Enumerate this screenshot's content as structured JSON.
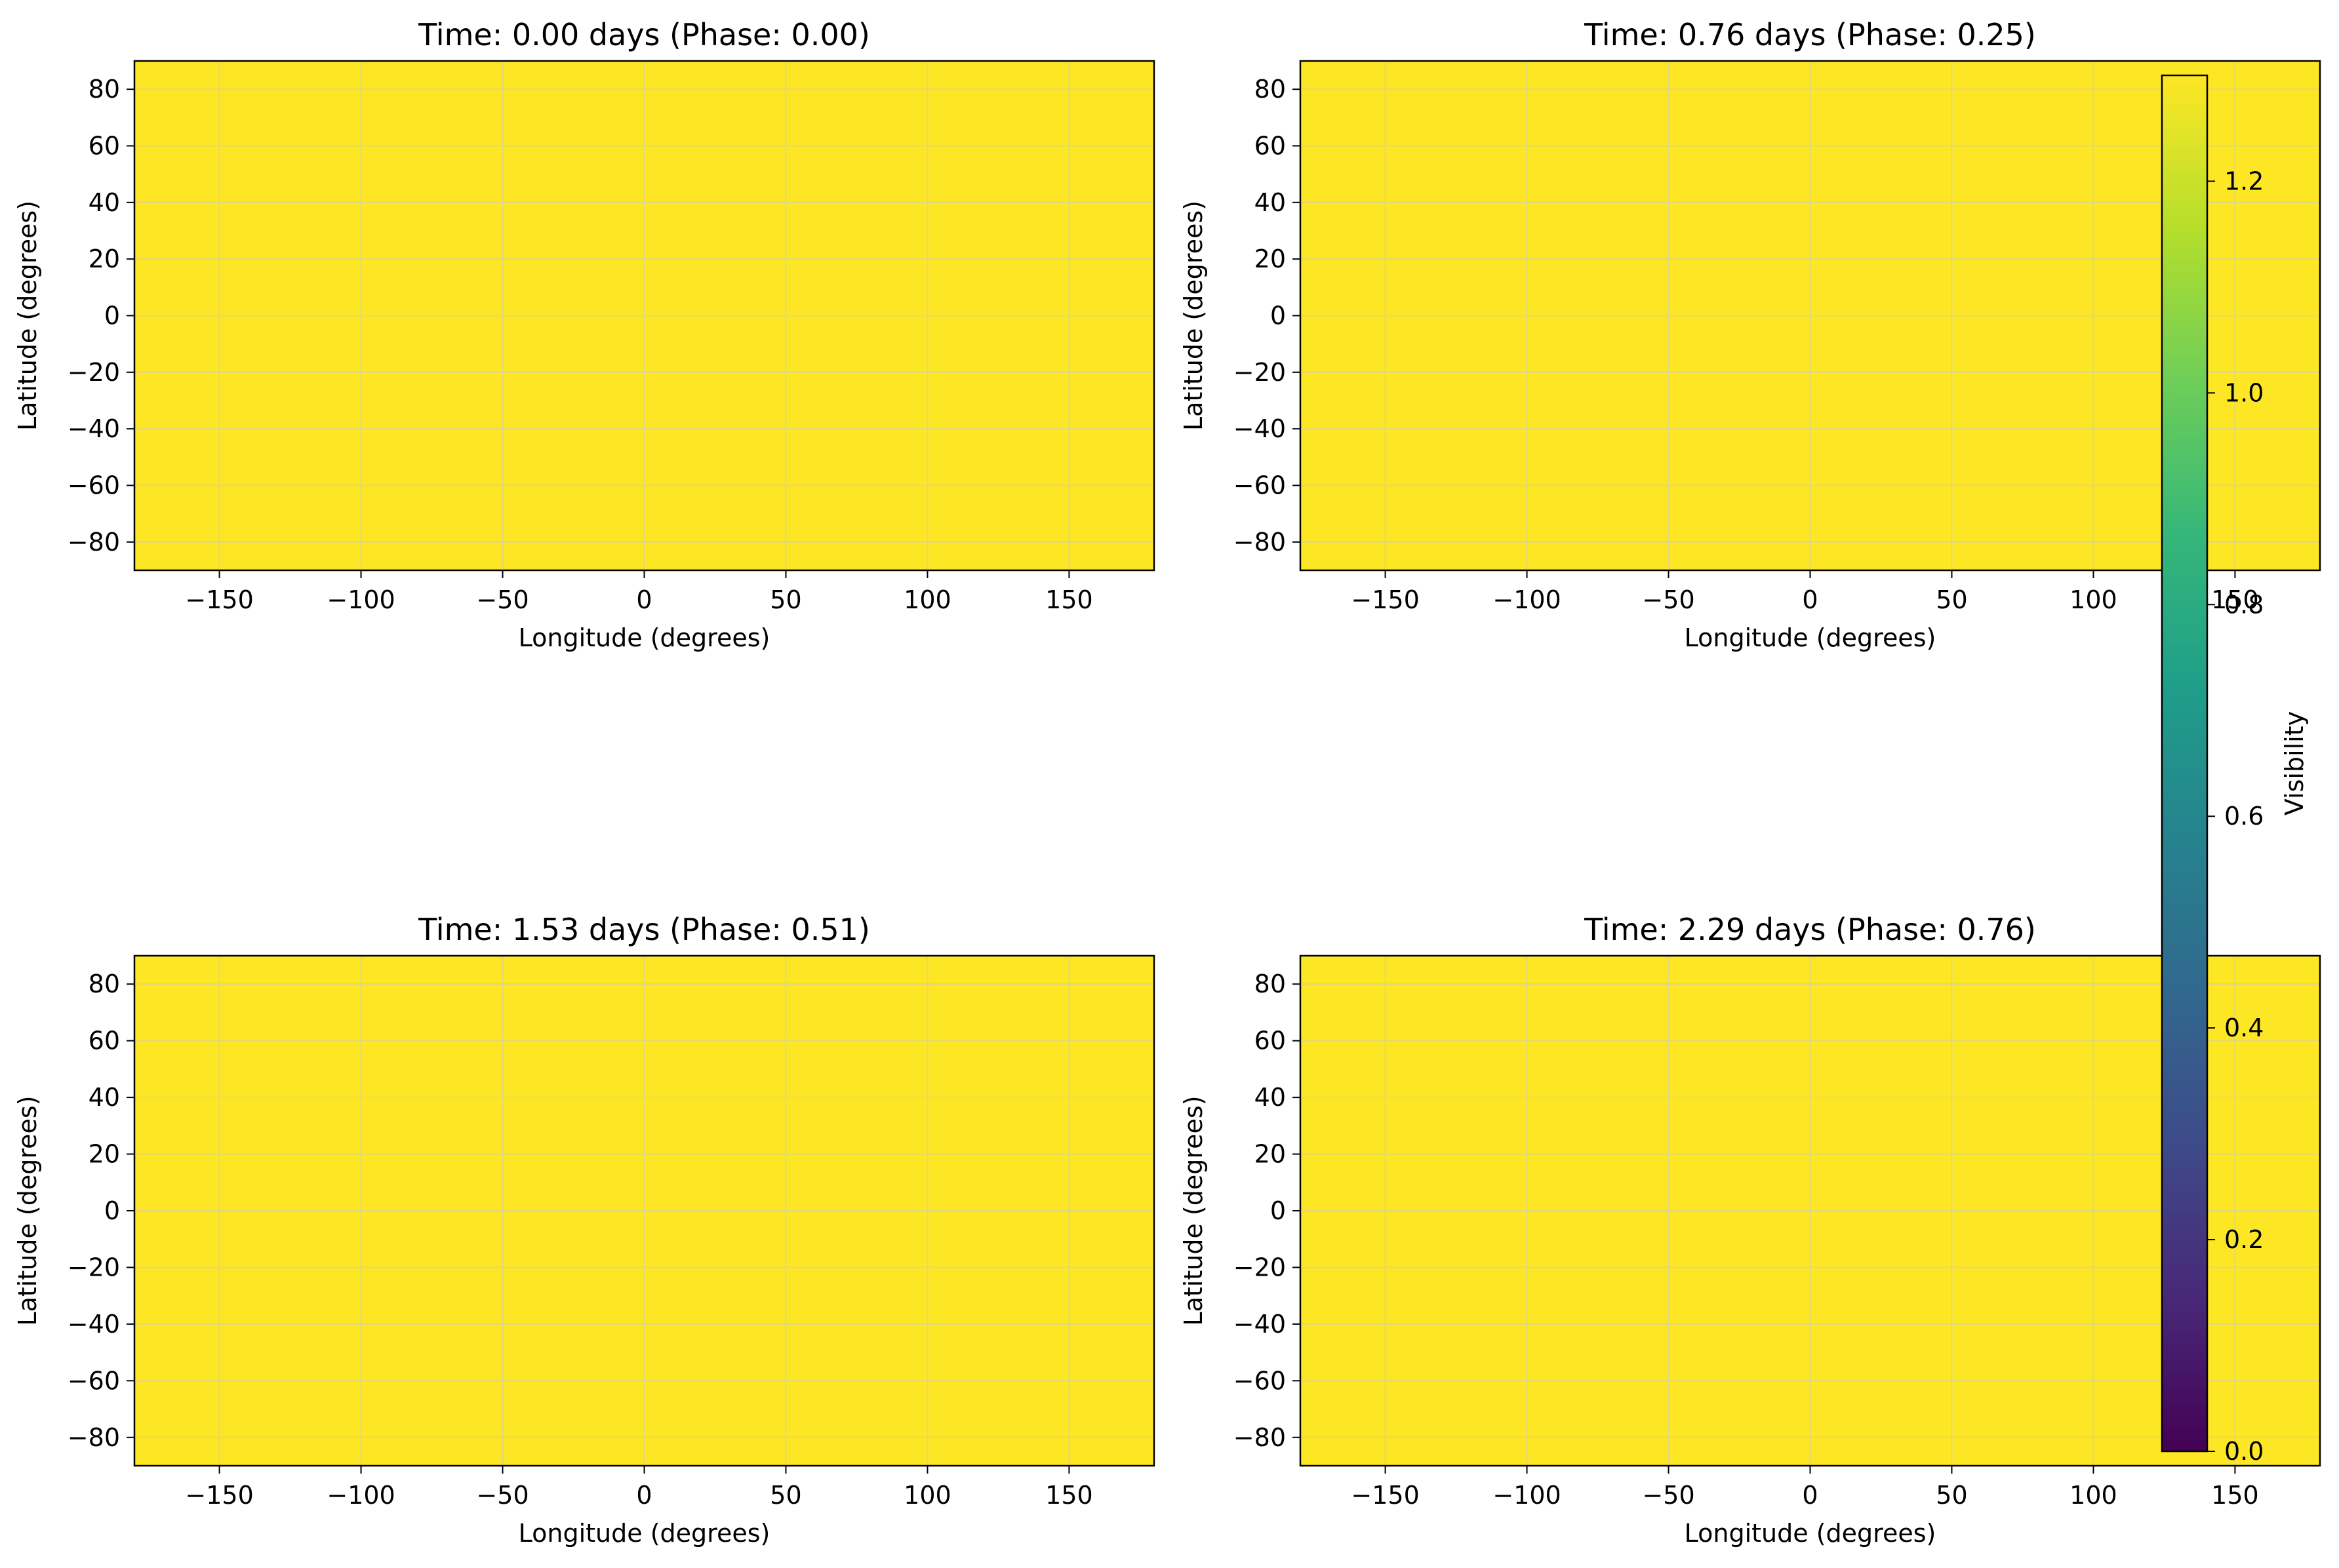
{
  "chart_data": [
    {
      "type": "heatmap",
      "title": "Time: 0.00 days (Phase: 0.00)",
      "xlabel": "Longitude (degrees)",
      "ylabel": "Latitude (degrees)",
      "xlim": [
        -180,
        180
      ],
      "ylim": [
        -90,
        90
      ],
      "xticks": [
        -150,
        -100,
        -50,
        0,
        50,
        100,
        150
      ],
      "yticks": [
        -80,
        -60,
        -40,
        -20,
        0,
        20,
        40,
        60,
        80
      ],
      "grid": true,
      "values": "uniform",
      "uniform_value": 1.3
    },
    {
      "type": "heatmap",
      "title": "Time: 0.76 days (Phase: 0.25)",
      "xlabel": "Longitude (degrees)",
      "ylabel": "Latitude (degrees)",
      "xlim": [
        -180,
        180
      ],
      "ylim": [
        -90,
        90
      ],
      "xticks": [
        -150,
        -100,
        -50,
        0,
        50,
        100,
        150
      ],
      "yticks": [
        -80,
        -60,
        -40,
        -20,
        0,
        20,
        40,
        60,
        80
      ],
      "grid": true,
      "values": "uniform",
      "uniform_value": 1.3
    },
    {
      "type": "heatmap",
      "title": "Time: 1.53 days (Phase: 0.51)",
      "xlabel": "Longitude (degrees)",
      "ylabel": "Latitude (degrees)",
      "xlim": [
        -180,
        180
      ],
      "ylim": [
        -90,
        90
      ],
      "xticks": [
        -150,
        -100,
        -50,
        0,
        50,
        100,
        150
      ],
      "yticks": [
        -80,
        -60,
        -40,
        -20,
        0,
        20,
        40,
        60,
        80
      ],
      "grid": true,
      "values": "uniform",
      "uniform_value": 1.3
    },
    {
      "type": "heatmap",
      "title": "Time: 2.29 days (Phase: 0.76)",
      "xlabel": "Longitude (degrees)",
      "ylabel": "Latitude (degrees)",
      "xlim": [
        -180,
        180
      ],
      "ylim": [
        -90,
        90
      ],
      "xticks": [
        -150,
        -100,
        -50,
        0,
        50,
        100,
        150
      ],
      "yticks": [
        -80,
        -60,
        -40,
        -20,
        0,
        20,
        40,
        60,
        80
      ],
      "grid": true,
      "values": "uniform",
      "uniform_value": 1.3
    }
  ],
  "colorbar": {
    "label": "Visibility",
    "colormap": "viridis",
    "range": [
      0.0,
      1.3
    ],
    "ticks": [
      0.0,
      0.2,
      0.4,
      0.6,
      0.8,
      1.0,
      1.2
    ],
    "tick_labels": [
      "0.0",
      "0.2",
      "0.4",
      "0.6",
      "0.8",
      "1.0",
      "1.2"
    ]
  },
  "colors": {
    "field": "#fde725",
    "grid": "#d6d0a0",
    "axes": "#000000",
    "viridis_stops": [
      "#440154",
      "#482878",
      "#3e4a89",
      "#31688e",
      "#26828e",
      "#1f9e89",
      "#35b779",
      "#6ece58",
      "#b5de2b",
      "#fde725"
    ]
  }
}
